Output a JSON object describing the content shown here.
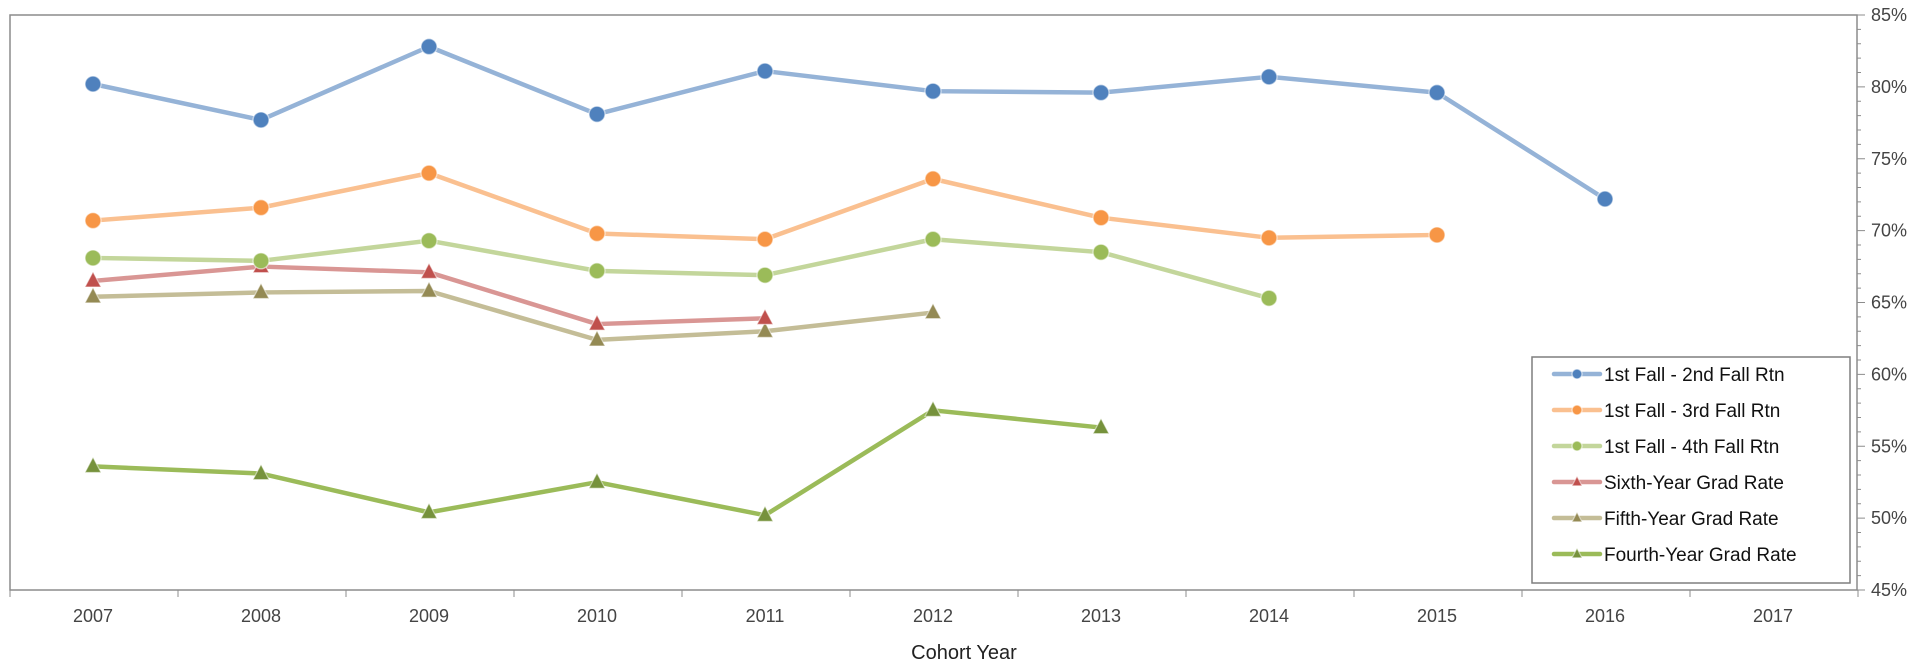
{
  "chart_data": {
    "type": "line",
    "categories": [
      "2007",
      "2008",
      "2009",
      "2010",
      "2011",
      "2012",
      "2013",
      "2014",
      "2015",
      "2016",
      "2017"
    ],
    "xlabel": "Cohort Year",
    "ylabel": "",
    "ylim": [
      45,
      85
    ],
    "y_ticks": [
      45,
      50,
      55,
      60,
      65,
      70,
      75,
      80,
      85
    ],
    "y_tick_labels": [
      "45%",
      "50%",
      "55%",
      "60%",
      "65%",
      "70%",
      "75%",
      "80%",
      "85%"
    ],
    "y_axis_side": "right",
    "grid": false,
    "legend_position": "bottom-right",
    "series": [
      {
        "name": "1st Fall - 2nd Fall Rtn",
        "color": "#4f81bd",
        "line_color": "#95b3d7",
        "marker": "circle",
        "values": [
          80.2,
          77.7,
          82.8,
          78.1,
          81.1,
          79.7,
          79.6,
          80.7,
          79.6,
          72.2,
          null
        ]
      },
      {
        "name": "1st Fall - 3rd Fall Rtn",
        "color": "#f79646",
        "line_color": "#fac090",
        "marker": "circle",
        "values": [
          70.7,
          71.6,
          74.0,
          69.8,
          69.4,
          73.6,
          70.9,
          69.5,
          69.7,
          null,
          null
        ]
      },
      {
        "name": "1st Fall - 4th Fall Rtn",
        "color": "#9bbb59",
        "line_color": "#c3d69b",
        "marker": "circle",
        "values": [
          68.1,
          67.9,
          69.3,
          67.2,
          66.9,
          69.4,
          68.5,
          65.3,
          null,
          null,
          null
        ]
      },
      {
        "name": "Sixth-Year Grad Rate",
        "color": "#c0504d",
        "line_color": "#d99694",
        "marker": "triangle",
        "values": [
          66.5,
          67.5,
          67.1,
          63.5,
          63.9,
          null,
          null,
          null,
          null,
          null,
          null
        ]
      },
      {
        "name": "Fifth-Year Grad Rate",
        "color": "#948a54",
        "line_color": "#c4bd97",
        "marker": "triangle",
        "values": [
          65.4,
          65.7,
          65.8,
          62.4,
          63.0,
          64.3,
          null,
          null,
          null,
          null,
          null
        ]
      },
      {
        "name": "Fourth-Year Grad Rate",
        "color": "#76923c",
        "line_color": "#9bbb59",
        "marker": "triangle",
        "values": [
          53.6,
          53.1,
          50.4,
          52.5,
          50.2,
          57.5,
          56.3,
          null,
          null,
          null,
          null
        ]
      }
    ]
  }
}
